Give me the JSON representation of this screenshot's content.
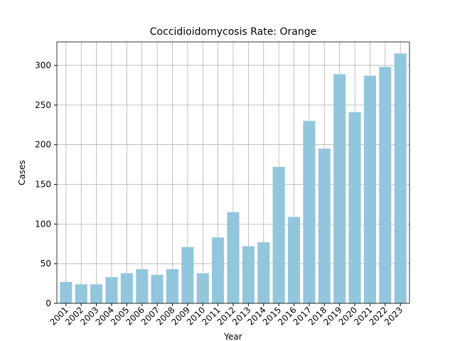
{
  "chart_data": {
    "type": "bar",
    "title": "Coccidioidomycosis Rate: Orange",
    "x_label": "Year",
    "y_label": "Cases",
    "categories": [
      "2001",
      "2002",
      "2003",
      "2004",
      "2005",
      "2006",
      "2007",
      "2008",
      "2009",
      "2010",
      "2011",
      "2012",
      "2013",
      "2014",
      "2015",
      "2016",
      "2017",
      "2018",
      "2019",
      "2020",
      "2021",
      "2022",
      "2023"
    ],
    "values": [
      27,
      24,
      24,
      33,
      38,
      43,
      36,
      43,
      71,
      38,
      83,
      115,
      72,
      77,
      172,
      109,
      230,
      195,
      289,
      241,
      287,
      298,
      315
    ],
    "color": "#92c6dc",
    "ylim": [
      0,
      329.6
    ],
    "yticks": [
      0,
      50,
      100,
      150,
      200,
      250,
      300
    ],
    "grid": true
  }
}
